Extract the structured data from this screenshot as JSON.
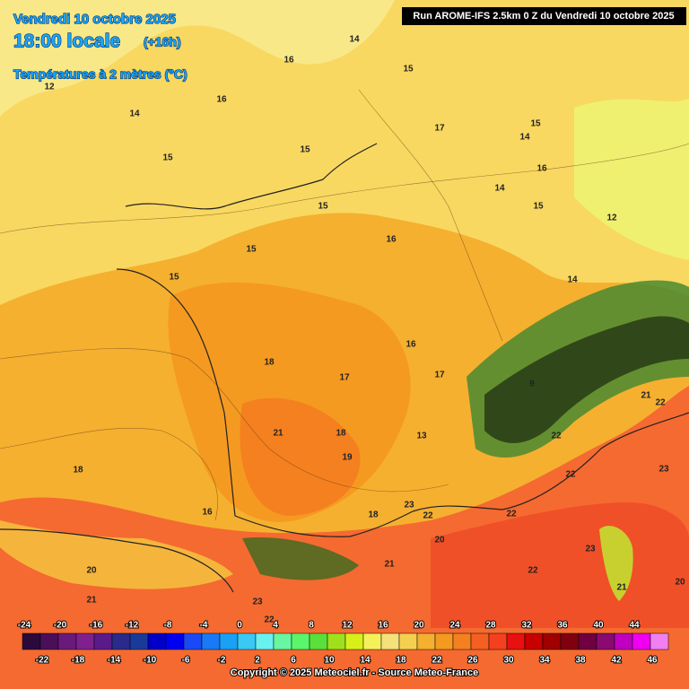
{
  "header": {
    "date": "Vendredi 10 octobre 2025",
    "time": "18:00 locale",
    "lead": "(+16h)",
    "field": "Températures à 2 mètres (°C)",
    "run": "Run AROME-IFS 2.5km 0 Z du Vendredi 10 octobre 2025"
  },
  "map": {
    "labels": [
      14,
      16,
      15,
      12,
      14,
      16,
      17,
      14,
      15,
      16,
      15,
      15,
      14,
      15,
      12,
      15,
      16,
      15,
      15,
      14,
      16,
      18,
      17,
      17,
      9,
      21,
      22,
      21,
      18,
      13,
      19,
      18,
      22,
      23,
      22,
      16,
      18,
      23,
      22,
      22,
      20,
      23,
      22,
      21,
      20,
      21,
      23,
      22,
      21,
      20
    ]
  },
  "legend": {
    "colors": [
      "#2a0a3a",
      "#4b0f5a",
      "#6a1a7a",
      "#80208f",
      "#5a1a8a",
      "#2a2a8a",
      "#1a3a9a",
      "#0000c8",
      "#0000f0",
      "#1a4af5",
      "#1a7af5",
      "#1aa0f5",
      "#3ac8f5",
      "#6af0f0",
      "#6af5a0",
      "#5af56a",
      "#5ae03a",
      "#a0e01a",
      "#d8f01a",
      "#f5f05a",
      "#f5e07a",
      "#f5d050",
      "#f5b030",
      "#f59a20",
      "#f58020",
      "#f56020",
      "#f54020",
      "#e81010",
      "#c80000",
      "#a00000",
      "#800010",
      "#700040",
      "#8a0a70",
      "#c000c0",
      "#f000f0",
      "#f080f0"
    ],
    "top_labels": [
      -24,
      -20,
      -16,
      -12,
      -8,
      -4,
      0,
      4,
      8,
      12,
      16,
      20,
      24,
      28,
      32,
      36,
      40,
      44
    ],
    "bottom_labels": [
      -22,
      -18,
      -14,
      -10,
      -6,
      -2,
      2,
      6,
      10,
      14,
      18,
      22,
      26,
      30,
      34,
      38,
      42,
      46
    ]
  },
  "footer": {
    "copyright": "Copyright © 2025 Meteociel.fr - Source Meteo-France"
  }
}
